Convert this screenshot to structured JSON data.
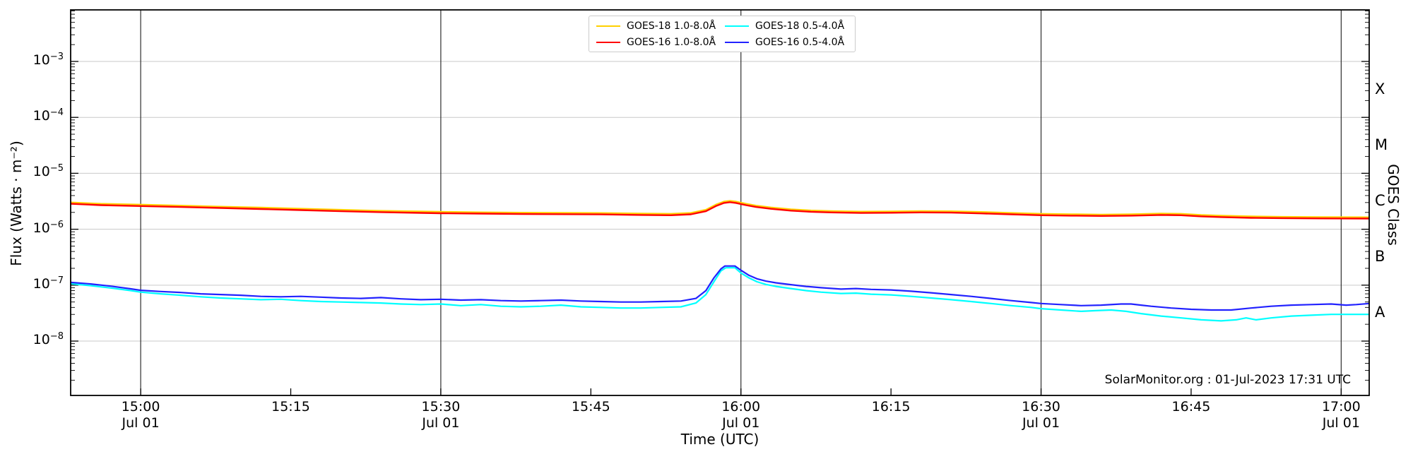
{
  "annotation": "SolarMonitor.org : 01-Jul-2023 17:31 UTC",
  "axes": {
    "x_label": "Time (UTC)",
    "y_label": "Flux (Watts · m⁻²)",
    "y_right_label": "GOES Class"
  },
  "legend": {
    "items": [
      {
        "label": "GOES-18 1.0-8.0Å",
        "color": "#ffd000"
      },
      {
        "label": "GOES-16 1.0-8.0Å",
        "color": "#ff0000"
      },
      {
        "label": "GOES-18 0.5-4.0Å",
        "color": "#00ffff"
      },
      {
        "label": "GOES-16 0.5-4.0Å",
        "color": "#2222ff"
      }
    ]
  },
  "chart_data": {
    "type": "line",
    "x_axis": {
      "unit": "minutes after 15:00 UTC on 01-Jul-2023",
      "range": [
        -7,
        122.8
      ],
      "major_ticks": [
        {
          "t": 0,
          "time": "15:00",
          "date": "Jul 01"
        },
        {
          "t": 15,
          "time": "15:15",
          "date": ""
        },
        {
          "t": 30,
          "time": "15:30",
          "date": "Jul 01"
        },
        {
          "t": 45,
          "time": "15:45",
          "date": ""
        },
        {
          "t": 60,
          "time": "16:00",
          "date": "Jul 01"
        },
        {
          "t": 75,
          "time": "16:15",
          "date": ""
        },
        {
          "t": 90,
          "time": "16:30",
          "date": "Jul 01"
        },
        {
          "t": 105,
          "time": "16:45",
          "date": ""
        },
        {
          "t": 120,
          "time": "17:00",
          "date": "Jul 01"
        }
      ],
      "gridline_t": [
        0,
        30,
        60,
        90,
        120
      ]
    },
    "y_axis": {
      "scale": "log",
      "range_log10": [
        -8.972,
        -2.078
      ],
      "tick_labels": [
        {
          "log": -3,
          "base": "10",
          "exp": "−3"
        },
        {
          "log": -4,
          "base": "10",
          "exp": "−4"
        },
        {
          "log": -5,
          "base": "10",
          "exp": "−5"
        },
        {
          "log": -6,
          "base": "10",
          "exp": "−6"
        },
        {
          "log": -7,
          "base": "10",
          "exp": "−7"
        },
        {
          "log": -8,
          "base": "10",
          "exp": "−8"
        }
      ],
      "gridline_log": [
        -3,
        -4,
        -5,
        -6,
        -7,
        -8
      ]
    },
    "goes_class_labels": [
      {
        "label": "X",
        "log": -3.5
      },
      {
        "label": "M",
        "log": -4.5
      },
      {
        "label": "C",
        "log": -5.5
      },
      {
        "label": "B",
        "log": -6.5
      },
      {
        "label": "A",
        "log": -7.5
      }
    ],
    "series": [
      {
        "name": "GOES-18 1.0-8.0Å",
        "color": "#ffd000",
        "width": 2.2,
        "points": [
          [
            -7,
            3.02e-06
          ],
          [
            -4,
            2.86e-06
          ],
          [
            0,
            2.76e-06
          ],
          [
            4,
            2.65e-06
          ],
          [
            8,
            2.54e-06
          ],
          [
            12,
            2.44e-06
          ],
          [
            16,
            2.33e-06
          ],
          [
            20,
            2.23e-06
          ],
          [
            24,
            2.14e-06
          ],
          [
            28,
            2.08e-06
          ],
          [
            30,
            2.05e-06
          ],
          [
            34,
            2.01e-06
          ],
          [
            38,
            1.98e-06
          ],
          [
            42,
            1.97e-06
          ],
          [
            46,
            1.95e-06
          ],
          [
            50,
            1.91e-06
          ],
          [
            53,
            1.89e-06
          ],
          [
            55,
            1.96e-06
          ],
          [
            56.5,
            2.23e-06
          ],
          [
            57.5,
            2.76e-06
          ],
          [
            58.3,
            3.13e-06
          ],
          [
            58.9,
            3.23e-06
          ],
          [
            59.5,
            3.13e-06
          ],
          [
            60.5,
            2.86e-06
          ],
          [
            61.5,
            2.65e-06
          ],
          [
            63,
            2.46e-06
          ],
          [
            65,
            2.28e-06
          ],
          [
            67,
            2.17e-06
          ],
          [
            69,
            2.12e-06
          ],
          [
            72,
            2.07e-06
          ],
          [
            75,
            2.09e-06
          ],
          [
            78,
            2.12e-06
          ],
          [
            81,
            2.1e-06
          ],
          [
            84,
            2.04e-06
          ],
          [
            87,
            1.96e-06
          ],
          [
            90,
            1.89e-06
          ],
          [
            93,
            1.86e-06
          ],
          [
            96,
            1.83e-06
          ],
          [
            99,
            1.86e-06
          ],
          [
            102,
            1.91e-06
          ],
          [
            104,
            1.89e-06
          ],
          [
            106,
            1.8e-06
          ],
          [
            108,
            1.75e-06
          ],
          [
            111,
            1.7e-06
          ],
          [
            114,
            1.67e-06
          ],
          [
            118,
            1.65e-06
          ],
          [
            122.8,
            1.64e-06
          ]
        ]
      },
      {
        "name": "GOES-16 1.0-8.0Å",
        "color": "#ff0000",
        "width": 2.4,
        "points": [
          [
            -7,
            2.85e-06
          ],
          [
            -4,
            2.7e-06
          ],
          [
            0,
            2.6e-06
          ],
          [
            4,
            2.5e-06
          ],
          [
            8,
            2.4e-06
          ],
          [
            12,
            2.3e-06
          ],
          [
            16,
            2.2e-06
          ],
          [
            20,
            2.1e-06
          ],
          [
            24,
            2.02e-06
          ],
          [
            28,
            1.96e-06
          ],
          [
            30,
            1.93e-06
          ],
          [
            34,
            1.9e-06
          ],
          [
            38,
            1.87e-06
          ],
          [
            42,
            1.86e-06
          ],
          [
            46,
            1.84e-06
          ],
          [
            50,
            1.8e-06
          ],
          [
            53,
            1.78e-06
          ],
          [
            55,
            1.85e-06
          ],
          [
            56.5,
            2.1e-06
          ],
          [
            57.5,
            2.6e-06
          ],
          [
            58.3,
            2.95e-06
          ],
          [
            58.9,
            3.05e-06
          ],
          [
            59.5,
            2.95e-06
          ],
          [
            60.5,
            2.7e-06
          ],
          [
            61.5,
            2.5e-06
          ],
          [
            63,
            2.32e-06
          ],
          [
            65,
            2.15e-06
          ],
          [
            67,
            2.05e-06
          ],
          [
            69,
            2e-06
          ],
          [
            72,
            1.95e-06
          ],
          [
            75,
            1.97e-06
          ],
          [
            78,
            2e-06
          ],
          [
            81,
            1.98e-06
          ],
          [
            84,
            1.92e-06
          ],
          [
            87,
            1.85e-06
          ],
          [
            90,
            1.78e-06
          ],
          [
            93,
            1.75e-06
          ],
          [
            96,
            1.73e-06
          ],
          [
            99,
            1.75e-06
          ],
          [
            102,
            1.8e-06
          ],
          [
            104,
            1.78e-06
          ],
          [
            106,
            1.7e-06
          ],
          [
            108,
            1.65e-06
          ],
          [
            111,
            1.6e-06
          ],
          [
            114,
            1.58e-06
          ],
          [
            118,
            1.56e-06
          ],
          [
            122.8,
            1.55e-06
          ]
        ]
      },
      {
        "name": "GOES-18 0.5-4.0Å",
        "color": "#00ffff",
        "width": 2.2,
        "points": [
          [
            -7,
            1.06e-07
          ],
          [
            -5,
            9.8e-08
          ],
          [
            -3,
            8.9e-08
          ],
          [
            -1,
            8e-08
          ],
          [
            0,
            7.5e-08
          ],
          [
            2,
            7e-08
          ],
          [
            4,
            6.6e-08
          ],
          [
            6,
            6.2e-08
          ],
          [
            8,
            5.9e-08
          ],
          [
            10,
            5.7e-08
          ],
          [
            12,
            5.5e-08
          ],
          [
            14,
            5.6e-08
          ],
          [
            16,
            5.3e-08
          ],
          [
            18,
            5.1e-08
          ],
          [
            20,
            5e-08
          ],
          [
            22,
            4.9e-08
          ],
          [
            24,
            4.8e-08
          ],
          [
            26,
            4.6e-08
          ],
          [
            28,
            4.5e-08
          ],
          [
            30,
            4.6e-08
          ],
          [
            32,
            4.3e-08
          ],
          [
            34,
            4.5e-08
          ],
          [
            36,
            4.2e-08
          ],
          [
            38,
            4.1e-08
          ],
          [
            40,
            4.2e-08
          ],
          [
            42,
            4.4e-08
          ],
          [
            44,
            4.1e-08
          ],
          [
            46,
            4e-08
          ],
          [
            48,
            3.9e-08
          ],
          [
            50,
            3.9e-08
          ],
          [
            52,
            4e-08
          ],
          [
            54,
            4.1e-08
          ],
          [
            55.5,
            4.8e-08
          ],
          [
            56.5,
            6.8e-08
          ],
          [
            57.3,
            1.15e-07
          ],
          [
            58,
            1.8e-07
          ],
          [
            58.5,
            2.05e-07
          ],
          [
            59.4,
            2.05e-07
          ],
          [
            60,
            1.65e-07
          ],
          [
            60.8,
            1.35e-07
          ],
          [
            61.6,
            1.15e-07
          ],
          [
            62.5,
            1.03e-07
          ],
          [
            63.5,
            9.5e-08
          ],
          [
            65,
            8.7e-08
          ],
          [
            66.5,
            8e-08
          ],
          [
            68,
            7.5e-08
          ],
          [
            70,
            7.1e-08
          ],
          [
            71.5,
            7.2e-08
          ],
          [
            73,
            6.9e-08
          ],
          [
            75,
            6.7e-08
          ],
          [
            77,
            6.3e-08
          ],
          [
            79,
            5.9e-08
          ],
          [
            81,
            5.5e-08
          ],
          [
            83,
            5.1e-08
          ],
          [
            85,
            4.7e-08
          ],
          [
            87,
            4.3e-08
          ],
          [
            89,
            4e-08
          ],
          [
            90,
            3.8e-08
          ],
          [
            92,
            3.6e-08
          ],
          [
            94,
            3.4e-08
          ],
          [
            95.5,
            3.5e-08
          ],
          [
            97,
            3.6e-08
          ],
          [
            98.5,
            3.4e-08
          ],
          [
            100,
            3.1e-08
          ],
          [
            102,
            2.8e-08
          ],
          [
            104,
            2.6e-08
          ],
          [
            106,
            2.4e-08
          ],
          [
            108,
            2.3e-08
          ],
          [
            109.5,
            2.4e-08
          ],
          [
            110.5,
            2.6e-08
          ],
          [
            111.5,
            2.4e-08
          ],
          [
            113,
            2.6e-08
          ],
          [
            115,
            2.8e-08
          ],
          [
            117,
            2.9e-08
          ],
          [
            119,
            3e-08
          ],
          [
            121,
            3e-08
          ],
          [
            122.8,
            3e-08
          ]
        ]
      },
      {
        "name": "GOES-16 0.5-4.0Å",
        "color": "#2222ff",
        "width": 2.2,
        "points": [
          [
            -7,
            1.12e-07
          ],
          [
            -5,
            1.05e-07
          ],
          [
            -3,
            9.6e-08
          ],
          [
            -1,
            8.6e-08
          ],
          [
            0,
            8.1e-08
          ],
          [
            2,
            7.7e-08
          ],
          [
            4,
            7.4e-08
          ],
          [
            6,
            7e-08
          ],
          [
            8,
            6.8e-08
          ],
          [
            10,
            6.6e-08
          ],
          [
            12,
            6.3e-08
          ],
          [
            14,
            6.2e-08
          ],
          [
            16,
            6.3e-08
          ],
          [
            18,
            6.1e-08
          ],
          [
            20,
            5.9e-08
          ],
          [
            22,
            5.8e-08
          ],
          [
            24,
            6e-08
          ],
          [
            26,
            5.7e-08
          ],
          [
            28,
            5.5e-08
          ],
          [
            30,
            5.6e-08
          ],
          [
            32,
            5.4e-08
          ],
          [
            34,
            5.5e-08
          ],
          [
            36,
            5.3e-08
          ],
          [
            38,
            5.2e-08
          ],
          [
            40,
            5.3e-08
          ],
          [
            42,
            5.4e-08
          ],
          [
            44,
            5.2e-08
          ],
          [
            46,
            5.1e-08
          ],
          [
            48,
            5e-08
          ],
          [
            50,
            5e-08
          ],
          [
            52,
            5.1e-08
          ],
          [
            54,
            5.2e-08
          ],
          [
            55.5,
            5.8e-08
          ],
          [
            56.5,
            8e-08
          ],
          [
            57.3,
            1.35e-07
          ],
          [
            58,
            1.95e-07
          ],
          [
            58.4,
            2.2e-07
          ],
          [
            59.4,
            2.2e-07
          ],
          [
            60,
            1.85e-07
          ],
          [
            60.8,
            1.5e-07
          ],
          [
            61.6,
            1.3e-07
          ],
          [
            62.5,
            1.18e-07
          ],
          [
            63.5,
            1.1e-07
          ],
          [
            65,
            1.02e-07
          ],
          [
            66.5,
            9.5e-08
          ],
          [
            68,
            9e-08
          ],
          [
            70,
            8.5e-08
          ],
          [
            71.5,
            8.7e-08
          ],
          [
            73,
            8.4e-08
          ],
          [
            75,
            8.2e-08
          ],
          [
            77,
            7.8e-08
          ],
          [
            79,
            7.3e-08
          ],
          [
            81,
            6.8e-08
          ],
          [
            83,
            6.3e-08
          ],
          [
            85,
            5.8e-08
          ],
          [
            87,
            5.3e-08
          ],
          [
            89,
            4.9e-08
          ],
          [
            90,
            4.7e-08
          ],
          [
            92,
            4.5e-08
          ],
          [
            94,
            4.3e-08
          ],
          [
            96,
            4.4e-08
          ],
          [
            98,
            4.6e-08
          ],
          [
            99,
            4.6e-08
          ],
          [
            100,
            4.4e-08
          ],
          [
            101,
            4.2e-08
          ],
          [
            103,
            3.9e-08
          ],
          [
            105,
            3.7e-08
          ],
          [
            107,
            3.6e-08
          ],
          [
            109,
            3.6e-08
          ],
          [
            111,
            3.9e-08
          ],
          [
            113,
            4.2e-08
          ],
          [
            115,
            4.4e-08
          ],
          [
            117,
            4.5e-08
          ],
          [
            119,
            4.6e-08
          ],
          [
            120.5,
            4.4e-08
          ],
          [
            121.5,
            4.5e-08
          ],
          [
            122.8,
            4.7e-08
          ]
        ]
      }
    ],
    "style": {
      "v_gridline_color": "#2e2e2e",
      "h_gridline_color": "#c9c9c9",
      "frame_color": "#000000"
    }
  }
}
